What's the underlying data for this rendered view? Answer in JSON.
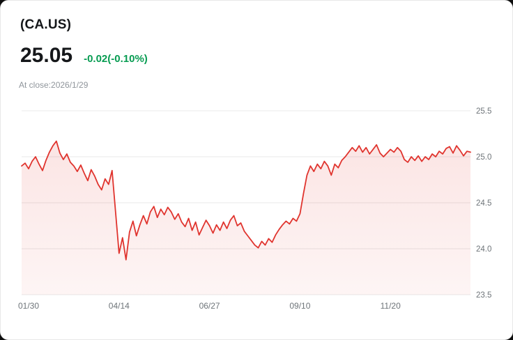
{
  "header": {
    "symbol": "(CA.US)",
    "price": "25.05",
    "change": "-0.02(-0.10%)",
    "close_info": "At close:2026/1/29"
  },
  "colors": {
    "line": "#e0342e",
    "change_text": "#089c52",
    "grid": "#e8e8e8",
    "axis_text": "#6e7479"
  },
  "chart_data": {
    "type": "area",
    "title": "(CA.US) one-year price history",
    "xlabel": "",
    "ylabel": "",
    "ylim": [
      23.5,
      25.5
    ],
    "yticks": [
      25.5,
      25.0,
      24.5,
      24.0,
      23.5
    ],
    "grid": true,
    "legend": "none",
    "xticks": [
      {
        "label": "01/30",
        "index": 2
      },
      {
        "label": "04/14",
        "index": 28
      },
      {
        "label": "06/27",
        "index": 54
      },
      {
        "label": "09/10",
        "index": 80
      },
      {
        "label": "11/20",
        "index": 106
      }
    ],
    "values": [
      24.9,
      24.93,
      24.87,
      24.95,
      25.0,
      24.92,
      24.85,
      24.96,
      25.05,
      25.12,
      25.17,
      25.04,
      24.97,
      25.03,
      24.94,
      24.9,
      24.84,
      24.91,
      24.82,
      24.74,
      24.86,
      24.79,
      24.7,
      24.64,
      24.76,
      24.7,
      24.85,
      24.4,
      23.95,
      24.12,
      23.88,
      24.18,
      24.3,
      24.14,
      24.26,
      24.36,
      24.27,
      24.4,
      24.46,
      24.34,
      24.43,
      24.37,
      24.45,
      24.4,
      24.32,
      24.38,
      24.29,
      24.24,
      24.33,
      24.2,
      24.29,
      24.15,
      24.23,
      24.31,
      24.25,
      24.17,
      24.26,
      24.2,
      24.29,
      24.22,
      24.31,
      24.36,
      24.25,
      24.28,
      24.19,
      24.14,
      24.09,
      24.04,
      24.01,
      24.08,
      24.04,
      24.11,
      24.07,
      24.15,
      24.21,
      24.26,
      24.3,
      24.27,
      24.33,
      24.3,
      24.38,
      24.6,
      24.8,
      24.9,
      24.84,
      24.92,
      24.87,
      24.95,
      24.9,
      24.8,
      24.92,
      24.88,
      24.96,
      25.0,
      25.05,
      25.1,
      25.06,
      25.12,
      25.05,
      25.1,
      25.03,
      25.08,
      25.13,
      25.04,
      25.0,
      25.04,
      25.08,
      25.05,
      25.1,
      25.06,
      24.97,
      24.94,
      25.0,
      24.96,
      25.01,
      24.95,
      25.0,
      24.97,
      25.03,
      25.0,
      25.06,
      25.03,
      25.09,
      25.11,
      25.04,
      25.12,
      25.07,
      25.01,
      25.06,
      25.05
    ]
  }
}
